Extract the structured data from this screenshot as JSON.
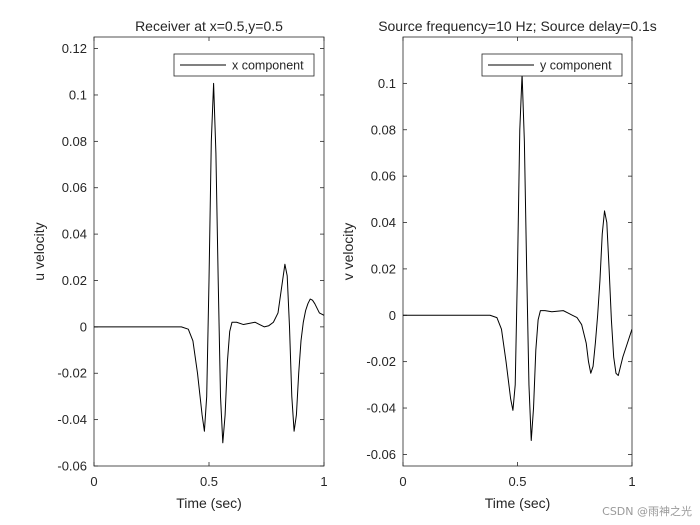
{
  "chart_data": [
    {
      "type": "line",
      "title": "Receiver at x=0.5,y=0.5",
      "xlabel": "Time (sec)",
      "ylabel": "u velocity",
      "xlim": [
        0,
        1
      ],
      "ylim": [
        -0.06,
        0.125
      ],
      "xticks": [
        0,
        0.5,
        1
      ],
      "xtick_labels": [
        "0",
        "0.5",
        "1"
      ],
      "yticks": [
        -0.06,
        -0.04,
        -0.02,
        0,
        0.02,
        0.04,
        0.06,
        0.08,
        0.1,
        0.12
      ],
      "ytick_labels": [
        "-0.06",
        "-0.04",
        "-0.02",
        "0",
        "0.02",
        "0.04",
        "0.06",
        "0.08",
        "0.1",
        "0.12"
      ],
      "legend_position": "top-right",
      "grid": false,
      "series": [
        {
          "name": "x component",
          "x": [
            0,
            0.1,
            0.2,
            0.3,
            0.38,
            0.41,
            0.43,
            0.45,
            0.47,
            0.48,
            0.49,
            0.5,
            0.51,
            0.52,
            0.53,
            0.54,
            0.55,
            0.56,
            0.57,
            0.58,
            0.59,
            0.6,
            0.62,
            0.65,
            0.7,
            0.72,
            0.74,
            0.76,
            0.78,
            0.8,
            0.82,
            0.83,
            0.84,
            0.85,
            0.86,
            0.87,
            0.88,
            0.89,
            0.9,
            0.91,
            0.92,
            0.93,
            0.94,
            0.95,
            0.96,
            0.97,
            0.98,
            1.0
          ],
          "y": [
            0,
            0,
            0,
            0,
            0,
            -0.001,
            -0.006,
            -0.02,
            -0.038,
            -0.045,
            -0.03,
            0.02,
            0.08,
            0.105,
            0.075,
            0.02,
            -0.03,
            -0.05,
            -0.038,
            -0.015,
            -0.002,
            0.002,
            0.002,
            0.001,
            0.002,
            0.001,
            0,
            0.0005,
            0.002,
            0.006,
            0.02,
            0.027,
            0.022,
            0.0,
            -0.03,
            -0.045,
            -0.038,
            -0.02,
            -0.006,
            0.002,
            0.007,
            0.01,
            0.012,
            0.0115,
            0.01,
            0.008,
            0.006,
            0.005
          ]
        }
      ]
    },
    {
      "type": "line",
      "title": "Source frequency=10 Hz; Source delay=0.1s",
      "xlabel": "Time (sec)",
      "ylabel": "v velocity",
      "xlim": [
        0,
        1
      ],
      "ylim": [
        -0.065,
        0.12
      ],
      "xticks": [
        0,
        0.5,
        1
      ],
      "xtick_labels": [
        "0",
        "0.5",
        "1"
      ],
      "yticks": [
        -0.06,
        -0.04,
        -0.02,
        0,
        0.02,
        0.04,
        0.06,
        0.08,
        0.1
      ],
      "ytick_labels": [
        "-0.06",
        "-0.04",
        "-0.02",
        "0",
        "0.02",
        "0.04",
        "0.06",
        "0.08",
        "0.1"
      ],
      "legend_position": "top-right",
      "grid": false,
      "series": [
        {
          "name": "y component",
          "x": [
            0,
            0.1,
            0.2,
            0.3,
            0.38,
            0.41,
            0.43,
            0.45,
            0.47,
            0.48,
            0.49,
            0.5,
            0.51,
            0.52,
            0.53,
            0.54,
            0.55,
            0.56,
            0.57,
            0.58,
            0.59,
            0.6,
            0.62,
            0.65,
            0.7,
            0.72,
            0.74,
            0.76,
            0.78,
            0.8,
            0.81,
            0.82,
            0.83,
            0.84,
            0.85,
            0.86,
            0.87,
            0.88,
            0.89,
            0.9,
            0.91,
            0.92,
            0.93,
            0.94,
            0.95,
            0.96,
            0.98,
            1.0
          ],
          "y": [
            0,
            0,
            0,
            0,
            0,
            -0.001,
            -0.006,
            -0.02,
            -0.036,
            -0.041,
            -0.03,
            0.02,
            0.08,
            0.104,
            0.075,
            0.02,
            -0.03,
            -0.054,
            -0.04,
            -0.015,
            -0.002,
            0.002,
            0.002,
            0.0015,
            0.002,
            0.001,
            0,
            -0.001,
            -0.004,
            -0.012,
            -0.02,
            -0.025,
            -0.022,
            -0.012,
            0.0,
            0.015,
            0.035,
            0.045,
            0.04,
            0.02,
            -0.002,
            -0.018,
            -0.025,
            -0.026,
            -0.022,
            -0.018,
            -0.012,
            -0.006
          ]
        }
      ]
    }
  ],
  "watermark": "CSDN @雨神之光"
}
